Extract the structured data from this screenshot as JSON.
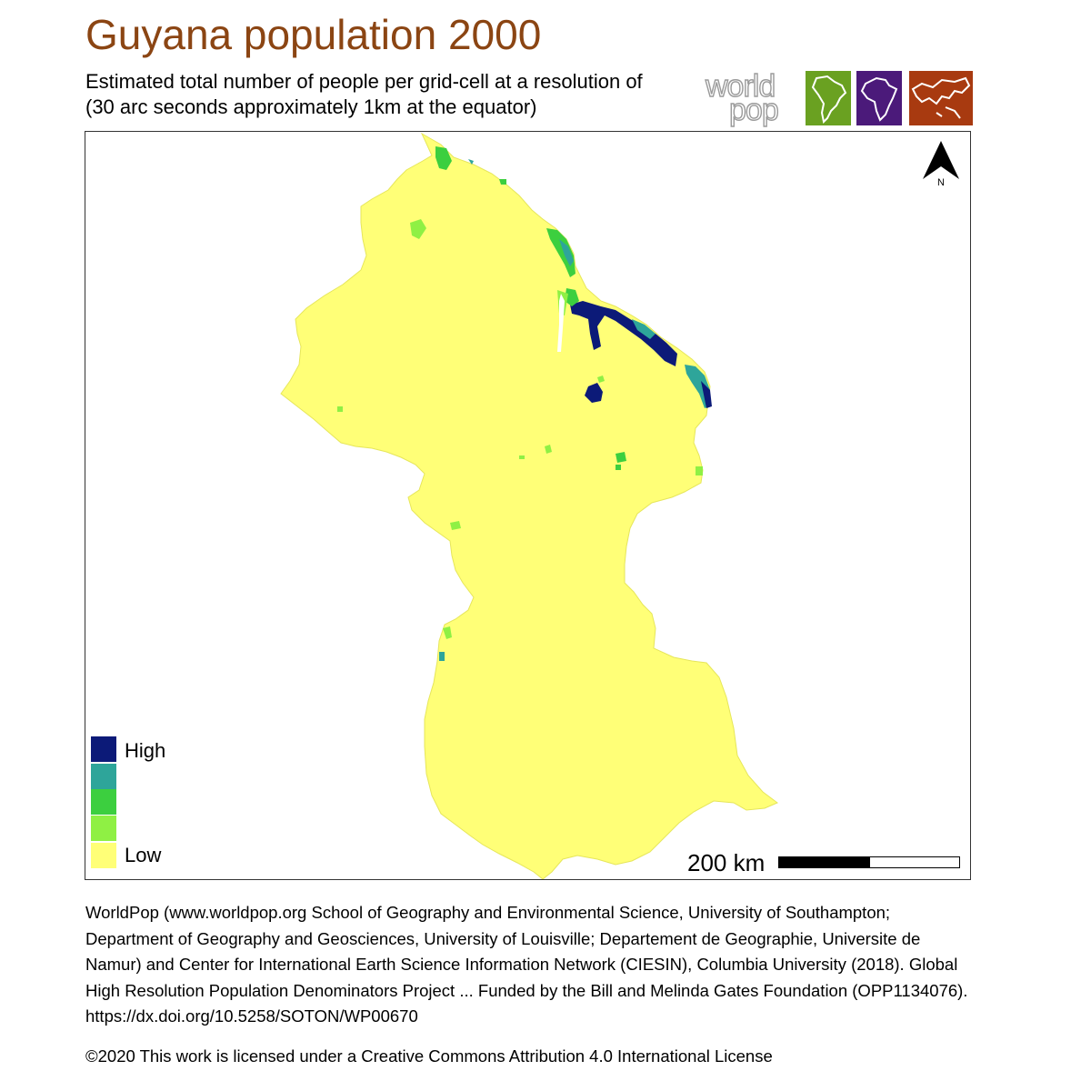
{
  "title": "Guyana population 2000",
  "subtitle": {
    "line1": "Estimated total number of people per grid-cell at a resolution of",
    "line2": "(30 arc seconds approximately 1km at the equator)"
  },
  "logo": {
    "word1": "world",
    "word2": "pop",
    "boxes": [
      {
        "name": "south-america-map-icon",
        "color": "#6aa121"
      },
      {
        "name": "africa-map-icon",
        "color": "#4b1a7a"
      },
      {
        "name": "asia-map-icon",
        "color": "#a83a10"
      }
    ]
  },
  "map": {
    "land_color": "#ffff77",
    "north_label": "N"
  },
  "legend": {
    "high_label": "High",
    "low_label": "Low",
    "colors": [
      "#0c1a78",
      "#2ea59a",
      "#3ccf3f",
      "#8ff044",
      "#ffff77"
    ]
  },
  "scale": {
    "label": "200 km"
  },
  "citation": "WorldPop (www.worldpop.org School of Geography and Environmental Science, University of Southampton; Department of Geography and Geosciences, University of Louisville; Departement de Geographie, Universite de Namur) and Center for International Earth Science Information Network (CIESIN), Columbia University (2018). Global High Resolution Population Denominators Project ... Funded by the Bill and Melinda Gates Foundation (OPP1134076). https://dx.doi.org/10.5258/SOTON/WP00670",
  "license": "©2020 This work is licensed under a Creative Commons Attribution 4.0 International License"
}
